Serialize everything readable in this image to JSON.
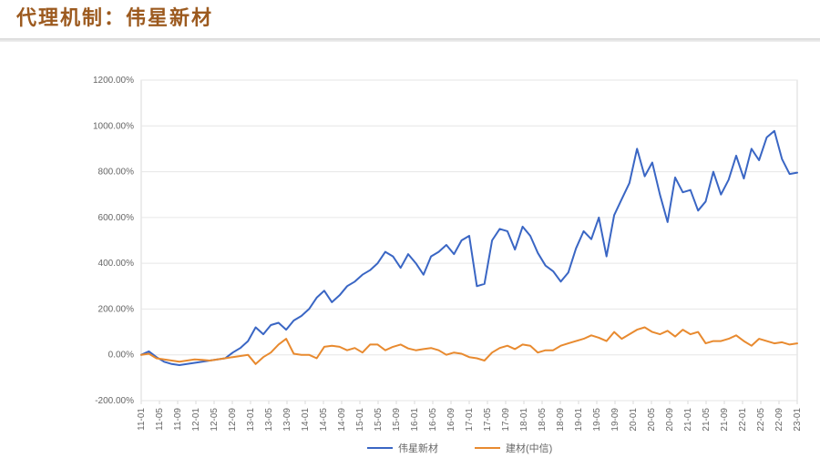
{
  "title": "代理机制：伟星新材",
  "chart": {
    "type": "line",
    "background_color": "#ffffff",
    "border_color": "#d9d9d9",
    "grid_color": "#e6e6e6",
    "ylim": [
      -200,
      1200
    ],
    "ytick_step": 200,
    "ytick_format": "percent2",
    "yticks": [
      "-200.00%",
      "0.00%",
      "200.00%",
      "400.00%",
      "600.00%",
      "800.00%",
      "1000.00%",
      "1200.00%"
    ],
    "x_labels": [
      "11-01",
      "11-05",
      "11-09",
      "12-01",
      "12-05",
      "12-09",
      "13-01",
      "13-05",
      "13-09",
      "14-01",
      "14-05",
      "14-09",
      "15-01",
      "15-05",
      "15-09",
      "16-01",
      "16-05",
      "16-09",
      "17-01",
      "17-05",
      "17-09",
      "18-01",
      "18-05",
      "18-09",
      "19-01",
      "19-05",
      "19-09",
      "20-01",
      "20-05",
      "20-09",
      "21-01",
      "21-05",
      "21-09",
      "22-01",
      "22-05",
      "22-09",
      "23-01"
    ],
    "x_label_rotation": -90,
    "label_fontsize": 10,
    "label_color": "#666666",
    "line_width": 2,
    "series": [
      {
        "name": "伟星新材",
        "color": "#3a66c4",
        "values": [
          0,
          15,
          -10,
          -30,
          -40,
          -45,
          -40,
          -35,
          -30,
          -25,
          -20,
          -15,
          10,
          30,
          60,
          120,
          90,
          130,
          140,
          110,
          150,
          170,
          200,
          250,
          280,
          230,
          260,
          300,
          320,
          350,
          370,
          400,
          450,
          430,
          380,
          440,
          400,
          350,
          430,
          450,
          480,
          440,
          500,
          520,
          300,
          310,
          500,
          550,
          540,
          460,
          560,
          520,
          445,
          390,
          365,
          320,
          360,
          465,
          540,
          505,
          600,
          430,
          610,
          680,
          750,
          900,
          780,
          840,
          700,
          580,
          775,
          710,
          720,
          630,
          670,
          800,
          700,
          765,
          870,
          770,
          900,
          850,
          950,
          978,
          855,
          790,
          796
        ]
      },
      {
        "name": "建材(中信)",
        "color": "#e88a2f",
        "values": [
          0,
          5,
          -15,
          -20,
          -25,
          -30,
          -25,
          -20,
          -22,
          -25,
          -20,
          -15,
          -10,
          -5,
          0,
          -40,
          -10,
          10,
          45,
          70,
          5,
          0,
          0,
          -15,
          35,
          40,
          35,
          20,
          30,
          10,
          45,
          45,
          20,
          35,
          45,
          28,
          20,
          25,
          30,
          20,
          0,
          10,
          5,
          -10,
          -15,
          -25,
          10,
          30,
          40,
          25,
          45,
          40,
          10,
          20,
          20,
          40,
          50,
          60,
          70,
          85,
          75,
          60,
          100,
          70,
          90,
          110,
          120,
          100,
          90,
          105,
          80,
          110,
          90,
          100,
          50,
          60,
          60,
          70,
          85,
          60,
          40,
          70,
          60,
          50,
          55,
          45,
          50
        ]
      }
    ],
    "legend": {
      "position": "bottom-center",
      "items": [
        "伟星新材",
        "建材(中信)"
      ]
    }
  }
}
